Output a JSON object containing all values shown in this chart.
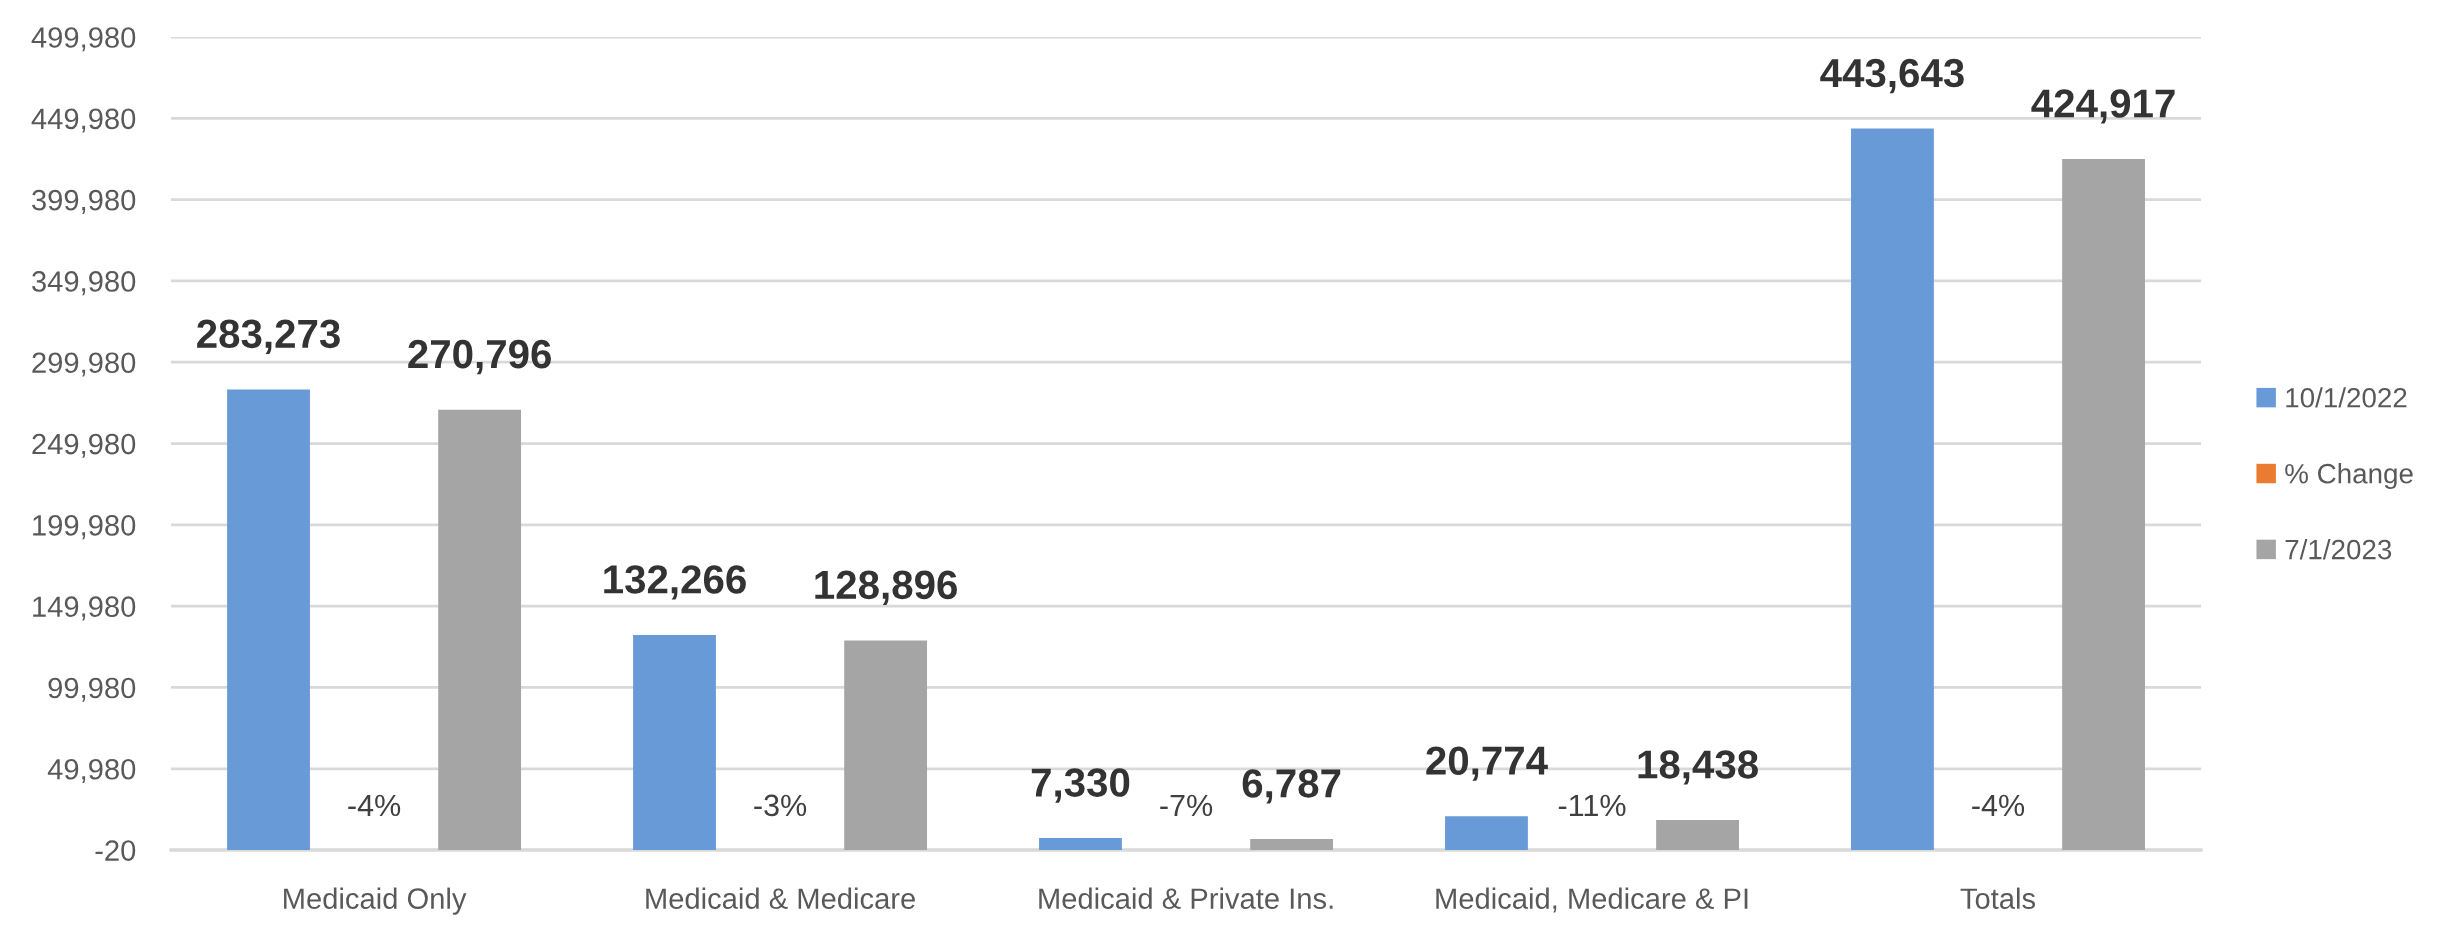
{
  "chart_data": {
    "type": "bar",
    "categories": [
      "Medicaid Only",
      "Medicaid & Medicare",
      "Medicaid & Private Ins.",
      "Medicaid, Medicare & PI",
      "Totals"
    ],
    "series": [
      {
        "name": "10/1/2022",
        "color": "#679ad6",
        "values": [
          283273,
          132266,
          7330,
          20774,
          443643
        ],
        "value_labels": [
          "283,273",
          "132,266",
          "7,330",
          "20,774",
          "443,643"
        ]
      },
      {
        "name": "% Change",
        "color": "#e97c30",
        "values": [
          null,
          null,
          null,
          null,
          null
        ],
        "value_labels": [
          "-4%",
          "-3%",
          "-7%",
          "-11%",
          "-4%"
        ]
      },
      {
        "name": "7/1/2023",
        "color": "#a5a5a5",
        "values": [
          270796,
          128896,
          6787,
          18438,
          424917
        ],
        "value_labels": [
          "270,796",
          "128,896",
          "6,787",
          "18,438",
          "424,917"
        ]
      }
    ],
    "ylim": [
      -20,
      499980
    ],
    "yticks": [
      -20,
      {
        "value": 49980,
        "label": "49,980"
      },
      {
        "value": 99980,
        "label": "99,980"
      },
      {
        "value": 149980,
        "label": "149,980"
      },
      {
        "value": 199980,
        "label": "199,980"
      },
      {
        "value": 249980,
        "label": "249,980"
      },
      {
        "value": 299980,
        "label": "299,980"
      },
      {
        "value": 349980,
        "label": "349,980"
      },
      {
        "value": 399980,
        "label": "399,980"
      },
      {
        "value": 449980,
        "label": "449,980"
      },
      {
        "value": 499980,
        "label": "499,980"
      }
    ],
    "grid": "y",
    "legend": "right"
  }
}
